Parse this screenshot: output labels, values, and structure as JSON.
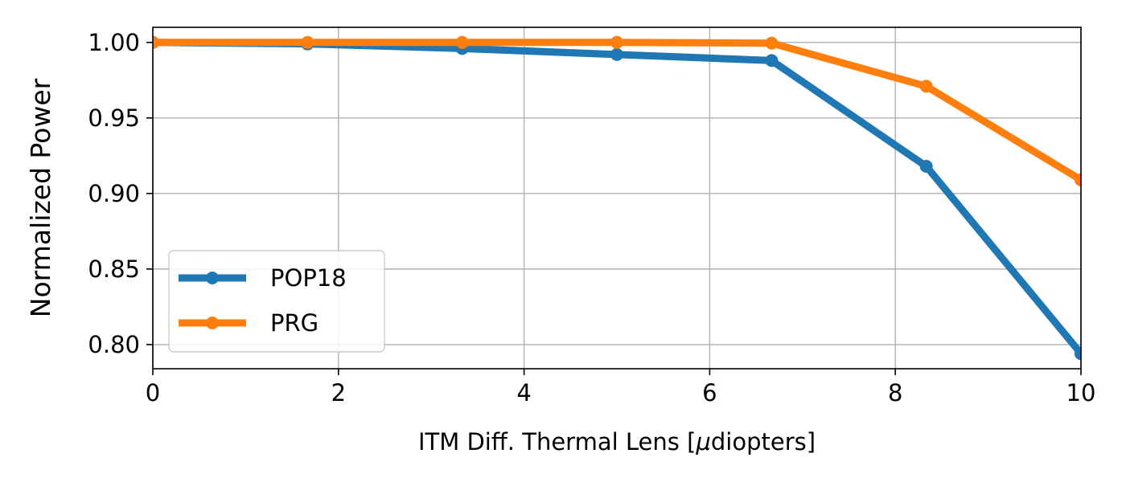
{
  "chart_data": {
    "type": "line",
    "xlabel_main": "ITM Diff. Thermal Lens  [",
    "xlabel_mu": "μ",
    "xlabel_tail": "diopters]",
    "ylabel": "Normalized Power",
    "xlim": [
      0,
      10
    ],
    "ylim": [
      0.784,
      1.01
    ],
    "x_ticks": [
      0,
      2,
      4,
      6,
      8,
      10
    ],
    "x_tick_labels": [
      "0",
      "2",
      "4",
      "6",
      "8",
      "10"
    ],
    "y_ticks": [
      0.8,
      0.85,
      0.9,
      0.95,
      1.0
    ],
    "y_tick_labels": [
      "0.80",
      "0.85",
      "0.90",
      "0.95",
      "1.00"
    ],
    "grid": true,
    "legend_position": "lower-left",
    "x": [
      0,
      1.667,
      3.333,
      5.0,
      6.667,
      8.333,
      10.0
    ],
    "series": [
      {
        "name": "POP18",
        "color": "#1f77b4",
        "values": [
          1.0,
          0.999,
          0.996,
          0.992,
          0.988,
          0.918,
          0.794
        ]
      },
      {
        "name": "PRG",
        "color": "#ff7f0e",
        "values": [
          1.0,
          1.0,
          1.0,
          1.0,
          0.9995,
          0.971,
          0.909
        ]
      }
    ]
  }
}
